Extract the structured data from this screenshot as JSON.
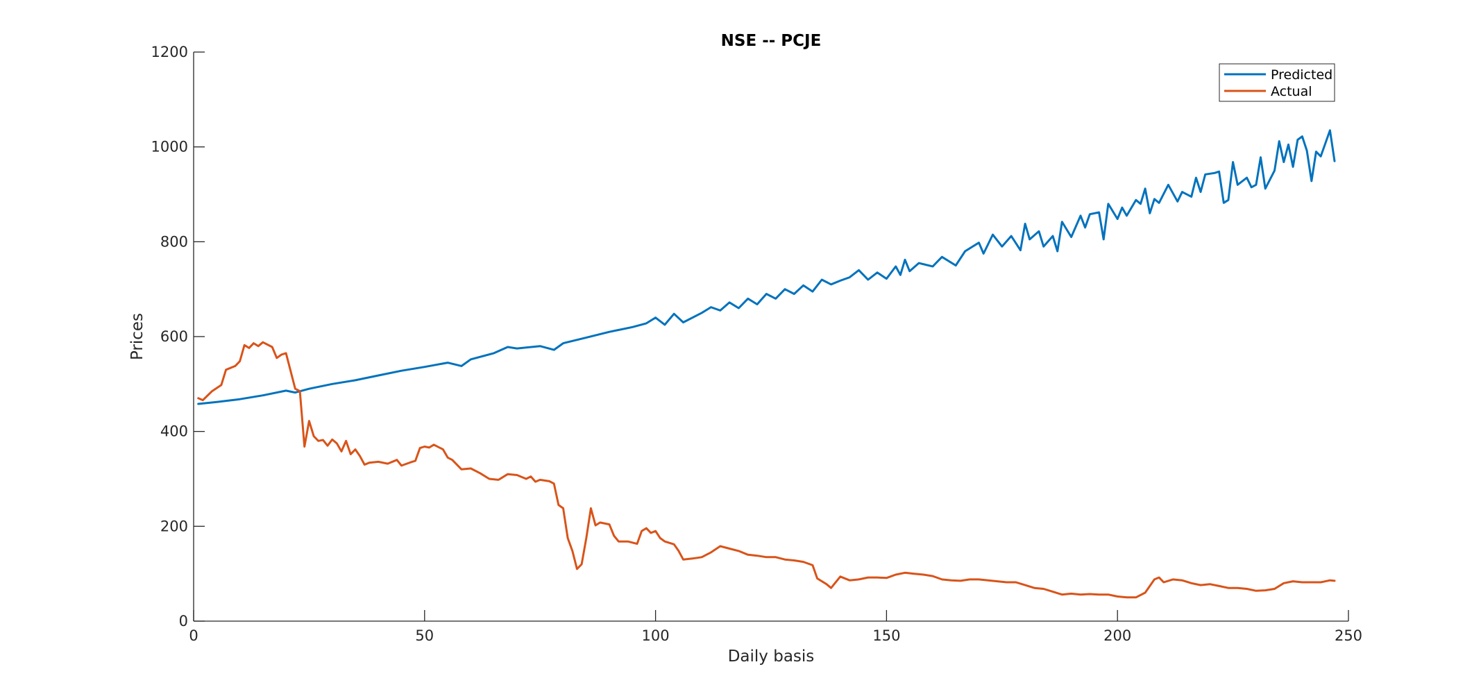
{
  "chart_data": {
    "type": "line",
    "title": "NSE -- PCJE",
    "xlabel": "Daily basis",
    "ylabel": "Prices",
    "xlim": [
      0,
      250
    ],
    "ylim": [
      0,
      1200
    ],
    "xticks": [
      0,
      50,
      100,
      150,
      200,
      250
    ],
    "yticks": [
      0,
      200,
      400,
      600,
      800,
      1000,
      1200
    ],
    "xtick_labels": [
      "0",
      "50",
      "100",
      "150",
      "200",
      "250"
    ],
    "ytick_labels": [
      "0",
      "200",
      "400",
      "600",
      "800",
      "1000",
      "1200"
    ],
    "grid": false,
    "legend_position": "top-right",
    "series": [
      {
        "name": "Predicted",
        "color": "#0072BD",
        "points": [
          [
            1,
            458
          ],
          [
            5,
            462
          ],
          [
            10,
            468
          ],
          [
            15,
            476
          ],
          [
            20,
            486
          ],
          [
            22,
            482
          ],
          [
            25,
            490
          ],
          [
            30,
            500
          ],
          [
            35,
            508
          ],
          [
            40,
            518
          ],
          [
            45,
            528
          ],
          [
            50,
            536
          ],
          [
            55,
            545
          ],
          [
            58,
            538
          ],
          [
            60,
            552
          ],
          [
            65,
            565
          ],
          [
            68,
            578
          ],
          [
            70,
            575
          ],
          [
            75,
            580
          ],
          [
            78,
            572
          ],
          [
            80,
            586
          ],
          [
            85,
            598
          ],
          [
            90,
            610
          ],
          [
            95,
            620
          ],
          [
            98,
            628
          ],
          [
            100,
            640
          ],
          [
            102,
            625
          ],
          [
            104,
            648
          ],
          [
            106,
            630
          ],
          [
            110,
            650
          ],
          [
            112,
            662
          ],
          [
            114,
            655
          ],
          [
            116,
            672
          ],
          [
            118,
            660
          ],
          [
            120,
            680
          ],
          [
            122,
            668
          ],
          [
            124,
            690
          ],
          [
            126,
            680
          ],
          [
            128,
            700
          ],
          [
            130,
            690
          ],
          [
            132,
            708
          ],
          [
            134,
            695
          ],
          [
            136,
            720
          ],
          [
            138,
            710
          ],
          [
            140,
            718
          ],
          [
            142,
            725
          ],
          [
            144,
            740
          ],
          [
            146,
            720
          ],
          [
            148,
            735
          ],
          [
            150,
            722
          ],
          [
            152,
            748
          ],
          [
            153,
            730
          ],
          [
            154,
            762
          ],
          [
            155,
            738
          ],
          [
            157,
            755
          ],
          [
            160,
            748
          ],
          [
            162,
            768
          ],
          [
            165,
            750
          ],
          [
            167,
            780
          ],
          [
            170,
            798
          ],
          [
            171,
            775
          ],
          [
            173,
            815
          ],
          [
            175,
            790
          ],
          [
            177,
            812
          ],
          [
            179,
            782
          ],
          [
            180,
            838
          ],
          [
            181,
            805
          ],
          [
            183,
            822
          ],
          [
            184,
            790
          ],
          [
            186,
            812
          ],
          [
            187,
            780
          ],
          [
            188,
            842
          ],
          [
            190,
            810
          ],
          [
            192,
            855
          ],
          [
            193,
            830
          ],
          [
            194,
            858
          ],
          [
            196,
            862
          ],
          [
            197,
            805
          ],
          [
            198,
            880
          ],
          [
            200,
            848
          ],
          [
            201,
            872
          ],
          [
            202,
            855
          ],
          [
            204,
            888
          ],
          [
            205,
            880
          ],
          [
            206,
            912
          ],
          [
            207,
            860
          ],
          [
            208,
            890
          ],
          [
            209,
            882
          ],
          [
            211,
            920
          ],
          [
            213,
            885
          ],
          [
            214,
            905
          ],
          [
            216,
            895
          ],
          [
            217,
            935
          ],
          [
            218,
            905
          ],
          [
            219,
            942
          ],
          [
            221,
            945
          ],
          [
            222,
            948
          ],
          [
            223,
            882
          ],
          [
            224,
            888
          ],
          [
            225,
            968
          ],
          [
            226,
            920
          ],
          [
            228,
            935
          ],
          [
            229,
            915
          ],
          [
            230,
            920
          ],
          [
            231,
            978
          ],
          [
            232,
            912
          ],
          [
            234,
            950
          ],
          [
            235,
            1012
          ],
          [
            236,
            968
          ],
          [
            237,
            1005
          ],
          [
            238,
            958
          ],
          [
            239,
            1015
          ],
          [
            240,
            1022
          ],
          [
            241,
            992
          ],
          [
            242,
            928
          ],
          [
            243,
            990
          ],
          [
            244,
            980
          ],
          [
            246,
            1035
          ],
          [
            247,
            970
          ]
        ]
      },
      {
        "name": "Actual",
        "color": "#D95319",
        "points": [
          [
            1,
            470
          ],
          [
            2,
            466
          ],
          [
            4,
            485
          ],
          [
            6,
            498
          ],
          [
            7,
            530
          ],
          [
            9,
            538
          ],
          [
            10,
            548
          ],
          [
            11,
            582
          ],
          [
            12,
            576
          ],
          [
            13,
            586
          ],
          [
            14,
            580
          ],
          [
            15,
            588
          ],
          [
            17,
            578
          ],
          [
            18,
            555
          ],
          [
            19,
            562
          ],
          [
            20,
            565
          ],
          [
            22,
            490
          ],
          [
            23,
            485
          ],
          [
            24,
            368
          ],
          [
            25,
            422
          ],
          [
            26,
            390
          ],
          [
            27,
            380
          ],
          [
            28,
            382
          ],
          [
            29,
            370
          ],
          [
            30,
            383
          ],
          [
            31,
            375
          ],
          [
            32,
            358
          ],
          [
            33,
            380
          ],
          [
            34,
            352
          ],
          [
            35,
            362
          ],
          [
            36,
            348
          ],
          [
            37,
            330
          ],
          [
            38,
            334
          ],
          [
            40,
            336
          ],
          [
            42,
            332
          ],
          [
            44,
            340
          ],
          [
            45,
            328
          ],
          [
            47,
            335
          ],
          [
            48,
            338
          ],
          [
            49,
            365
          ],
          [
            50,
            368
          ],
          [
            51,
            366
          ],
          [
            52,
            372
          ],
          [
            54,
            362
          ],
          [
            55,
            345
          ],
          [
            56,
            340
          ],
          [
            58,
            320
          ],
          [
            60,
            322
          ],
          [
            62,
            312
          ],
          [
            64,
            300
          ],
          [
            66,
            298
          ],
          [
            68,
            310
          ],
          [
            70,
            308
          ],
          [
            72,
            300
          ],
          [
            73,
            305
          ],
          [
            74,
            294
          ],
          [
            75,
            298
          ],
          [
            77,
            295
          ],
          [
            78,
            290
          ],
          [
            79,
            245
          ],
          [
            80,
            238
          ],
          [
            81,
            175
          ],
          [
            82,
            148
          ],
          [
            83,
            110
          ],
          [
            84,
            120
          ],
          [
            85,
            175
          ],
          [
            86,
            238
          ],
          [
            87,
            202
          ],
          [
            88,
            208
          ],
          [
            90,
            204
          ],
          [
            91,
            180
          ],
          [
            92,
            168
          ],
          [
            94,
            168
          ],
          [
            96,
            163
          ],
          [
            97,
            190
          ],
          [
            98,
            196
          ],
          [
            99,
            186
          ],
          [
            100,
            190
          ],
          [
            101,
            175
          ],
          [
            102,
            168
          ],
          [
            104,
            162
          ],
          [
            105,
            148
          ],
          [
            106,
            130
          ],
          [
            108,
            132
          ],
          [
            110,
            135
          ],
          [
            112,
            145
          ],
          [
            114,
            158
          ],
          [
            116,
            153
          ],
          [
            118,
            148
          ],
          [
            120,
            140
          ],
          [
            122,
            138
          ],
          [
            124,
            135
          ],
          [
            126,
            135
          ],
          [
            128,
            130
          ],
          [
            130,
            128
          ],
          [
            132,
            125
          ],
          [
            134,
            118
          ],
          [
            135,
            90
          ],
          [
            137,
            78
          ],
          [
            138,
            70
          ],
          [
            140,
            94
          ],
          [
            142,
            86
          ],
          [
            144,
            88
          ],
          [
            146,
            92
          ],
          [
            148,
            92
          ],
          [
            150,
            91
          ],
          [
            152,
            98
          ],
          [
            154,
            102
          ],
          [
            156,
            100
          ],
          [
            158,
            98
          ],
          [
            160,
            95
          ],
          [
            162,
            88
          ],
          [
            164,
            86
          ],
          [
            166,
            85
          ],
          [
            168,
            88
          ],
          [
            170,
            88
          ],
          [
            172,
            86
          ],
          [
            174,
            84
          ],
          [
            176,
            82
          ],
          [
            178,
            82
          ],
          [
            180,
            76
          ],
          [
            182,
            70
          ],
          [
            184,
            68
          ],
          [
            186,
            62
          ],
          [
            188,
            56
          ],
          [
            190,
            58
          ],
          [
            192,
            56
          ],
          [
            194,
            57
          ],
          [
            196,
            56
          ],
          [
            198,
            56
          ],
          [
            200,
            52
          ],
          [
            202,
            50
          ],
          [
            204,
            50
          ],
          [
            206,
            60
          ],
          [
            208,
            88
          ],
          [
            209,
            92
          ],
          [
            210,
            82
          ],
          [
            212,
            88
          ],
          [
            214,
            86
          ],
          [
            216,
            80
          ],
          [
            218,
            76
          ],
          [
            220,
            78
          ],
          [
            222,
            74
          ],
          [
            224,
            70
          ],
          [
            226,
            70
          ],
          [
            228,
            68
          ],
          [
            230,
            64
          ],
          [
            232,
            65
          ],
          [
            234,
            68
          ],
          [
            236,
            80
          ],
          [
            238,
            84
          ],
          [
            240,
            82
          ],
          [
            242,
            82
          ],
          [
            244,
            82
          ],
          [
            246,
            86
          ],
          [
            247,
            85
          ]
        ]
      }
    ]
  }
}
